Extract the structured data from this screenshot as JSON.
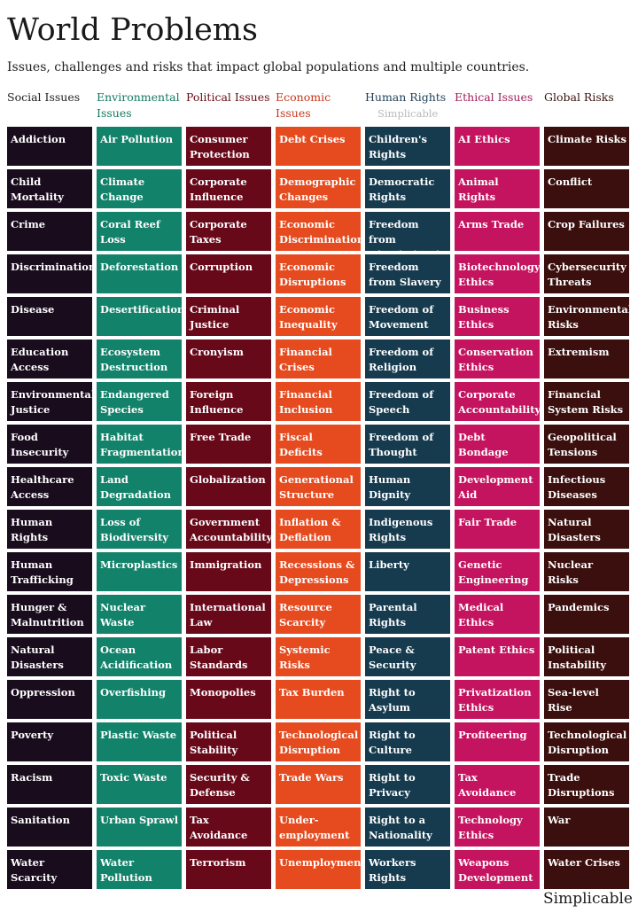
{
  "title": "World Problems",
  "subtitle": "Issues, challenges and risks that impact global populations and multiple countries.",
  "watermark": "Simplicable",
  "brand": "Simplicable",
  "columns": [
    {
      "header": "Social Issues",
      "header_color": "#1f1f1f",
      "color": "#190c1d",
      "items": [
        "Addiction",
        "Child Mortality",
        "Crime",
        "Discrimination",
        "Disease",
        "Education Access",
        "Environmental Justice",
        "Food Insecurity",
        "Healthcare Access",
        "Human Rights",
        "Human Trafficking",
        "Hunger & Malnutrition",
        "Natural Disasters",
        "Oppression",
        "Poverty",
        "Racism",
        "Sanitation",
        "Water Scarcity"
      ]
    },
    {
      "header": "Environmental Issues",
      "header_color": "#127a5e",
      "color": "#13826a",
      "items": [
        "Air Pollution",
        "Climate Change",
        "Coral Reef Loss",
        "Deforestation",
        "Desertification",
        "Ecosystem Destruction",
        "Endangered Species",
        "Habitat Fragmentation",
        "Land Degradation",
        "Loss of Biodiversity",
        "Microplastics",
        "Nuclear Waste",
        "Ocean Acidification",
        "Overfishing",
        "Plastic Waste",
        "Toxic Waste",
        "Urban Sprawl",
        "Water Pollution"
      ]
    },
    {
      "header": "Political Issues",
      "header_color": "#6a0c16",
      "color": "#68091a",
      "items": [
        "Consumer Protection",
        "Corporate Influence",
        "Corporate Taxes",
        "Corruption",
        "Criminal Justice",
        "Cronyism",
        "Foreign Influence",
        "Free Trade",
        "Globalization",
        "Government Accountability",
        "Immigration",
        "International Law",
        "Labor Standards",
        "Monopolies",
        "Political Stability",
        "Security & Defense",
        "Tax Avoidance",
        "Terrorism"
      ]
    },
    {
      "header": "Economic Issues",
      "header_color": "#c7361a",
      "color": "#e54b1f",
      "items": [
        "Debt Crises",
        "Demographic Changes",
        "Economic Discrimination",
        "Economic Disruptions",
        "Economic Inequality",
        "Financial Crises",
        "Financial Inclusion",
        "Fiscal Deficits",
        "Generational Structure",
        "Inflation & Deflation",
        "Recessions & Depressions",
        "Resource Scarcity",
        "Systemic Risks",
        "Tax Burden",
        "Technological Disruption",
        "Trade Wars",
        "Under-employment",
        "Unemployment"
      ]
    },
    {
      "header": "Human Rights",
      "header_color": "#1f3f55",
      "color": "#163a4e",
      "items": [
        "Children's Rights",
        "Democratic Rights",
        "Freedom from Discrimination",
        "Freedom from Slavery",
        "Freedom of Movement",
        "Freedom of Religion",
        "Freedom of Speech",
        "Freedom of Thought",
        "Human Dignity",
        "Indigenous Rights",
        "Liberty",
        "Parental Rights",
        "Peace & Security",
        "Right to Asylum",
        "Right to Culture",
        "Right to Privacy",
        "Right to a Nationality",
        "Workers Rights"
      ]
    },
    {
      "header": "Ethical Issues",
      "header_color": "#a0205c",
      "color": "#c4135f",
      "items": [
        "AI Ethics",
        "Animal Rights",
        "Arms Trade",
        "Biotechnology Ethics",
        "Business Ethics",
        "Conservation Ethics",
        "Corporate Accountability",
        "Debt Bondage",
        "Development Aid",
        "Fair Trade",
        "Genetic Engineering",
        "Medical Ethics",
        "Patent Ethics",
        "Privatization Ethics",
        "Profiteering",
        "Tax Avoidance",
        "Technology Ethics",
        "Weapons Development"
      ]
    },
    {
      "header": "Global Risks",
      "header_color": "#3a1410",
      "color": "#3a0f0d",
      "items": [
        "Climate Risks",
        "Conflict",
        "Crop Failures",
        "Cybersecurity Threats",
        "Environmental Risks",
        "Extremism",
        "Financial System Risks",
        "Geopolitical Tensions",
        "Infectious Diseases",
        "Natural Disasters",
        "Nuclear Risks",
        "Pandemics",
        "Political Instability",
        "Sea-level Rise",
        "Technological Disruption",
        "Trade Disruptions",
        "War",
        "Water Crises"
      ]
    }
  ]
}
